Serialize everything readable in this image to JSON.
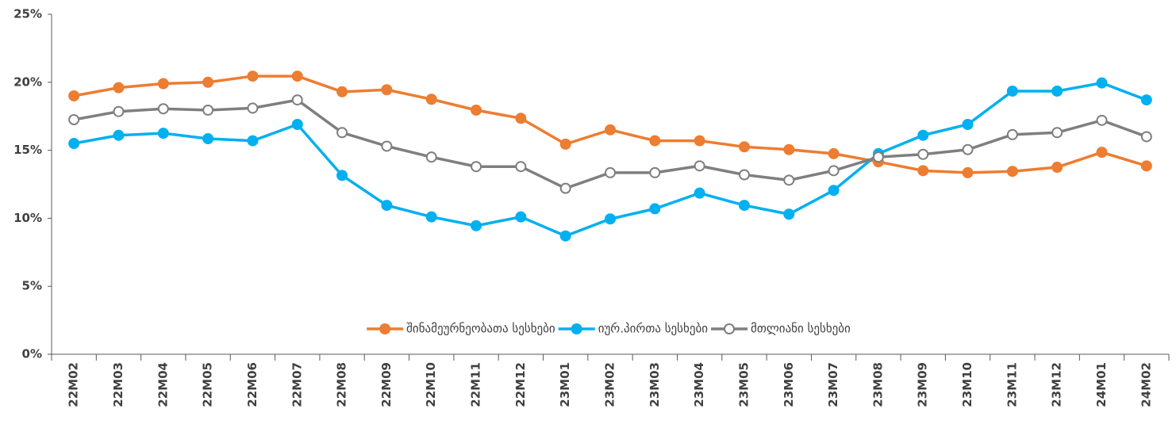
{
  "chart_data": {
    "type": "line",
    "categories": [
      "22M02",
      "22M03",
      "22M04",
      "22M05",
      "22M06",
      "22M07",
      "22M08",
      "22M09",
      "22M10",
      "22M11",
      "22M12",
      "23M01",
      "23M02",
      "23M03",
      "23M04",
      "23M05",
      "23M06",
      "23M07",
      "23M08",
      "23M09",
      "23M10",
      "23M11",
      "23M12",
      "24M01",
      "24M02"
    ],
    "series": [
      {
        "name": "შინამეურნეობათა სესხები",
        "color": "#ed7d31",
        "marker": "filled",
        "values": [
          19.0,
          19.6,
          19.9,
          20.0,
          20.45,
          20.45,
          19.3,
          19.45,
          18.75,
          17.95,
          17.35,
          15.45,
          16.5,
          15.7,
          15.7,
          15.25,
          15.05,
          14.75,
          14.15,
          13.5,
          13.35,
          13.45,
          13.75,
          14.85,
          13.85
        ]
      },
      {
        "name": "იურ.პირთა სესხები",
        "color": "#00b0f0",
        "marker": "filled",
        "values": [
          15.5,
          16.1,
          16.25,
          15.85,
          15.7,
          16.9,
          13.15,
          10.95,
          10.1,
          9.45,
          10.1,
          8.7,
          9.95,
          10.7,
          11.85,
          10.95,
          10.3,
          12.05,
          14.75,
          16.1,
          16.9,
          19.35,
          19.35,
          19.95,
          18.7
        ]
      },
      {
        "name": "მთლიანი სესხები",
        "color": "#7f7f7f",
        "marker": "hollow",
        "values": [
          17.25,
          17.85,
          18.05,
          17.95,
          18.1,
          18.7,
          16.3,
          15.3,
          14.5,
          13.8,
          13.8,
          12.2,
          13.35,
          13.35,
          13.85,
          13.2,
          12.8,
          13.5,
          14.5,
          14.7,
          15.05,
          16.15,
          16.3,
          17.2,
          16.0
        ]
      }
    ],
    "ylim": [
      0,
      25
    ],
    "yticks": [
      {
        "value": 0,
        "label": "0%"
      },
      {
        "value": 5,
        "label": "5%"
      },
      {
        "value": 10,
        "label": "10%"
      },
      {
        "value": 15,
        "label": "15%"
      },
      {
        "value": 20,
        "label": "20%"
      },
      {
        "value": 25,
        "label": "25%"
      }
    ],
    "grid": false,
    "legend": "bottom"
  }
}
